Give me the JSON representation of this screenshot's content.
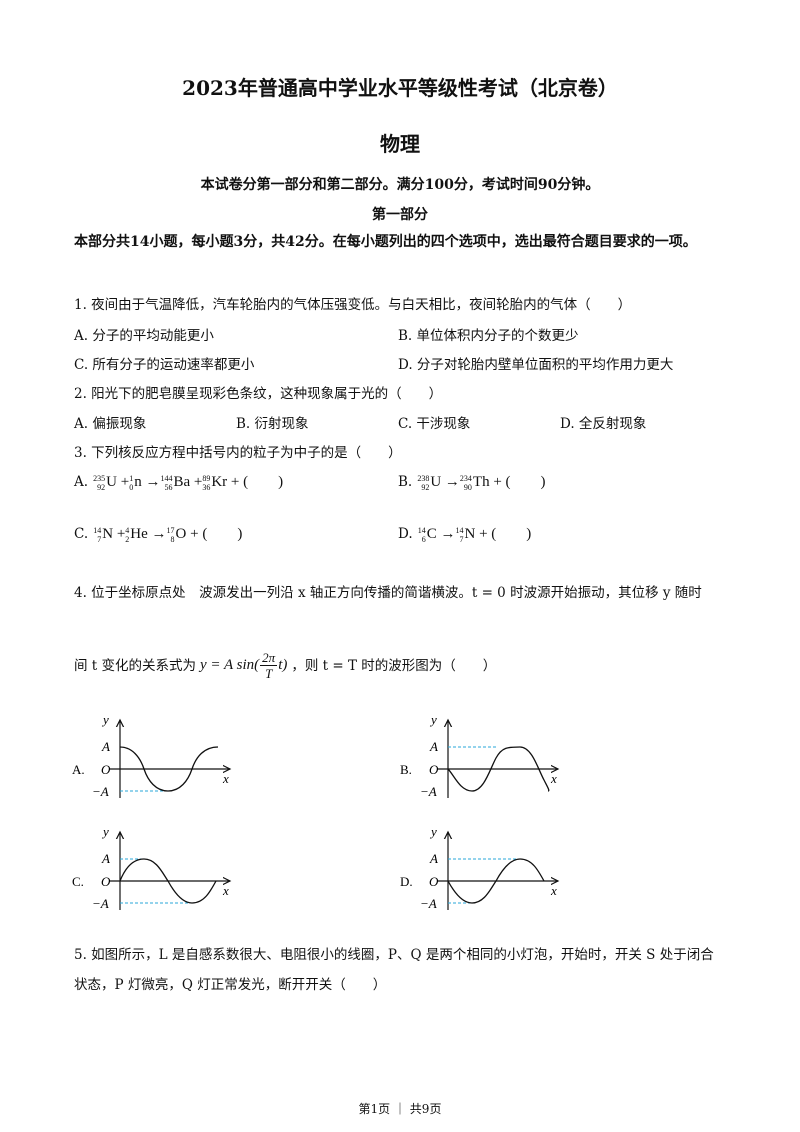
{
  "header": {
    "title": "2023年普通高中学业水平等级性考试（北京卷）",
    "subject": "物理",
    "intro": "本试卷分第一部分和第二部分。满分100分，考试时间90分钟。",
    "part": "第一部分",
    "instructions": "本部分共14小题，每小题3分，共42分。在每小题列出的四个选项中，选出最符合题目要求的一项。"
  },
  "questions": [
    {
      "stem": "1. 夜间由于气温降低，汽车轮胎内的气体压强变低。与白天相比，夜间轮胎内的气体（　　）",
      "options": [
        "A.  分子的平均动能更小",
        "B.  单位体积内分子的个数更少",
        "C.  所有分子的运动速率都更小",
        "D.  分子对轮胎内壁单位面积的平均作用力更大"
      ]
    },
    {
      "stem": "2. 阳光下的肥皂膜呈现彩色条纹，这种现象属于光的（　　）",
      "options": [
        "A.  偏振现象",
        "B.  衍射现象",
        "C.  干涉现象",
        "D.  全反射现象"
      ]
    },
    {
      "stem": "3. 下列核反应方程中括号内的粒子为中子的是（　　）",
      "option_letters": [
        "A.",
        "B.",
        "C.",
        "D."
      ]
    },
    {
      "stem_line1": "4. 位于坐标原点处　波源发出一列沿 x 轴正方向传播的简谐横波。t = 0 时波源开始振动，其位移 y 随时",
      "stem_line2_a": "间 t 变化的关系式为",
      "stem_line2_b": "，则 t = T 时的波形图为（　　）",
      "option_letters": [
        "A.",
        "B.",
        "C.",
        "D."
      ],
      "axis_labels": {
        "y": "y",
        "x": "x",
        "A": "A",
        "O": "O",
        "negA": "−A"
      }
    },
    {
      "stem_line1": "5. 如图所示，L 是自感系数很大、电阻很小的线圈，P、Q 是两个相同的小灯泡，开始时，开关 S 处于闭合",
      "stem_line2": "状态，P 灯微亮，Q 灯正常发光，断开开关（　　）"
    }
  ],
  "footer": "第1页 ｜ 共9页"
}
